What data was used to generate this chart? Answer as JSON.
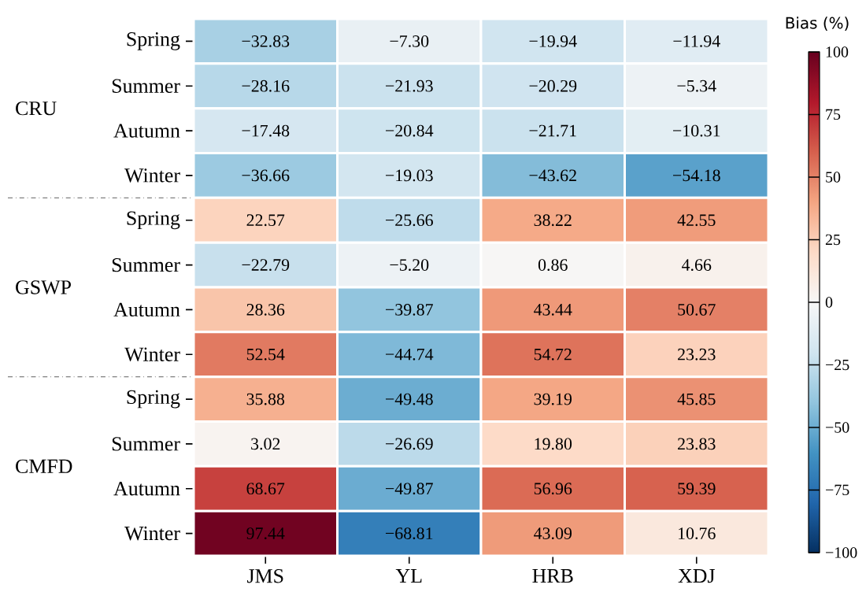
{
  "chart_data": {
    "type": "heatmap",
    "categories": [
      "JMS",
      "YL",
      "HRB",
      "XDJ"
    ],
    "y_categories": [
      "Spring",
      "Summer",
      "Autumn",
      "Winter",
      "Spring",
      "Summer",
      "Autumn",
      "Winter",
      "Spring",
      "Summer",
      "Autumn",
      "Winter"
    ],
    "cells": [
      [
        -32.83,
        -7.3,
        -19.94,
        -11.94
      ],
      [
        -28.16,
        -21.93,
        -20.29,
        -5.34
      ],
      [
        -17.48,
        -20.84,
        -21.71,
        -10.31
      ],
      [
        -36.66,
        -19.03,
        -43.62,
        -54.18
      ],
      [
        22.57,
        -25.66,
        38.22,
        42.55
      ],
      [
        -22.79,
        -5.2,
        0.86,
        4.66
      ],
      [
        28.36,
        -39.87,
        43.44,
        50.67
      ],
      [
        52.54,
        -44.74,
        54.72,
        23.23
      ],
      [
        35.88,
        -49.48,
        39.19,
        45.85
      ],
      [
        3.02,
        -26.69,
        19.8,
        23.83
      ],
      [
        68.67,
        -49.87,
        56.96,
        59.39
      ],
      [
        97.44,
        -68.81,
        43.09,
        10.76
      ]
    ],
    "cell_labels": [
      [
        "−32.83",
        "−7.30",
        "−19.94",
        "−11.94"
      ],
      [
        "−28.16",
        "−21.93",
        "−20.29",
        "−5.34"
      ],
      [
        "−17.48",
        "−20.84",
        "−21.71",
        "−10.31"
      ],
      [
        "−36.66",
        "−19.03",
        "−43.62",
        "−54.18"
      ],
      [
        "22.57",
        "−25.66",
        "38.22",
        "42.55"
      ],
      [
        "−22.79",
        "−5.20",
        "0.86",
        "4.66"
      ],
      [
        "28.36",
        "−39.87",
        "43.44",
        "50.67"
      ],
      [
        "52.54",
        "−44.74",
        "54.72",
        "23.23"
      ],
      [
        "35.88",
        "−49.48",
        "39.19",
        "45.85"
      ],
      [
        "3.02",
        "−26.69",
        "19.80",
        "23.83"
      ],
      [
        "68.67",
        "−49.87",
        "56.96",
        "59.39"
      ],
      [
        "97.44",
        "−68.81",
        "43.09",
        "10.76"
      ]
    ],
    "clabel": "Bias (%)",
    "clim": [
      -100,
      100
    ],
    "cticks": [
      {
        "value": -100,
        "label": "−100"
      },
      {
        "value": -75,
        "label": "−75"
      },
      {
        "value": -50,
        "label": "−50"
      },
      {
        "value": -25,
        "label": "−25"
      },
      0,
      25,
      50,
      75,
      100
    ],
    "annotations": [
      "CRU",
      "GSWP",
      "CMFD"
    ]
  }
}
